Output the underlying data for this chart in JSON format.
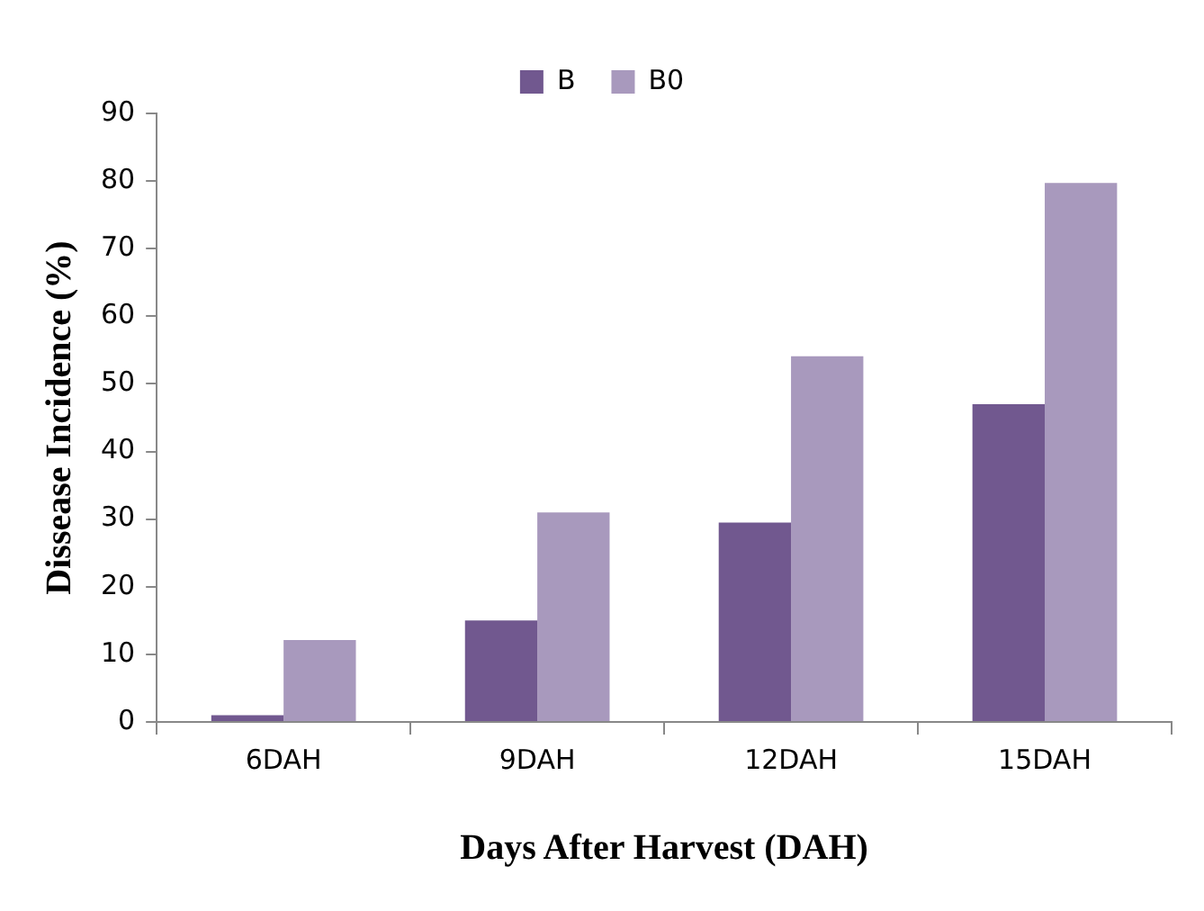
{
  "chart_data": {
    "type": "bar",
    "xlabel": "Days After Harvest (DAH)",
    "ylabel": "Dissease Incidence (%)",
    "categories": [
      "6DAH",
      "9DAH",
      "12DAH",
      "15DAH"
    ],
    "series": [
      {
        "name": "B",
        "color": "#71588f",
        "values": [
          1,
          15,
          29.5,
          47
        ]
      },
      {
        "name": "B0",
        "color": "#a899bd",
        "values": [
          12.1,
          31,
          54.1,
          79.7
        ]
      }
    ],
    "ylim": [
      0,
      90
    ],
    "yticks": [
      0,
      10,
      20,
      30,
      40,
      50,
      60,
      70,
      80,
      90
    ],
    "grid": false,
    "legend": "top"
  }
}
